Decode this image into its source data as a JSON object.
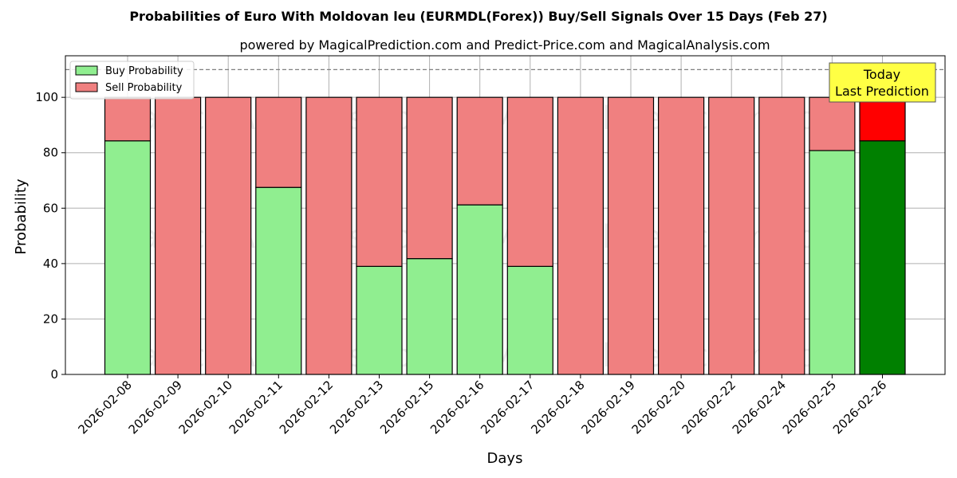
{
  "chart_data": {
    "type": "bar",
    "stacked": true,
    "title": "Probabilities of Euro With Moldovan leu (EURMDL(Forex)) Buy/Sell Signals Over 15 Days (Feb 27)",
    "subtitle": "powered by MagicalPrediction.com and Predict-Price.com and MagicalAnalysis.com",
    "xlabel": "Days",
    "ylabel": "Probability",
    "ylim": [
      0,
      115
    ],
    "yticks": [
      0,
      20,
      40,
      60,
      80,
      100
    ],
    "reference_line": 110,
    "grid": true,
    "legend_placement": "top-left",
    "categories": [
      "2026-02-08",
      "2026-02-09",
      "2026-02-10",
      "2026-02-11",
      "2026-02-12",
      "2026-02-13",
      "2026-02-15",
      "2026-02-16",
      "2026-02-17",
      "2026-02-18",
      "2026-02-19",
      "2026-02-20",
      "2026-02-22",
      "2026-02-24",
      "2026-02-25",
      "2026-02-26"
    ],
    "series": [
      {
        "name": "Buy Probability",
        "color": "#90ee90",
        "values": [
          84.3,
          0,
          0,
          67.5,
          0,
          39,
          41.8,
          61.2,
          39,
          0,
          0,
          0,
          0,
          0,
          80.8,
          84.3
        ]
      },
      {
        "name": "Sell Probability",
        "color": "#f08080",
        "values": [
          15.7,
          100,
          100,
          32.5,
          100,
          61,
          58.2,
          38.8,
          61,
          100,
          100,
          100,
          100,
          100,
          19.2,
          15.7
        ]
      }
    ],
    "highlight": {
      "index": 15,
      "buy_color": "#008000",
      "sell_color": "#ff0000"
    },
    "annotation": {
      "line1": "Today",
      "line2": "Last Prediction",
      "color": "#ffff44"
    },
    "watermarks": [
      "MagicalAnalysis.com",
      "MagicalPrediction.com"
    ]
  }
}
